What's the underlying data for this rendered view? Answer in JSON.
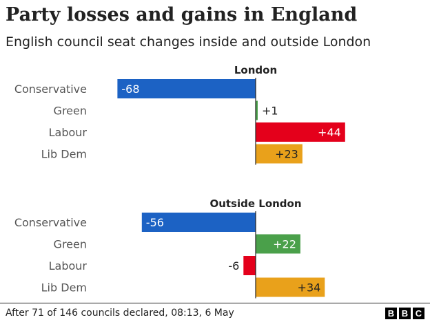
{
  "title": "Party losses and gains in England",
  "subtitle": "English council seat changes inside and outside London",
  "chart_data": [
    {
      "type": "bar",
      "title": "London",
      "categories": [
        "Conservative",
        "Green",
        "Labour",
        "Lib Dem"
      ],
      "values": [
        -68,
        1,
        44,
        23
      ],
      "labels": [
        "-68",
        "+1",
        "+44",
        "+23"
      ],
      "colors": [
        "#1c62c4",
        "#4aa04a",
        "#e4001b",
        "#e9a11b"
      ]
    },
    {
      "type": "bar",
      "title": "Outside London",
      "categories": [
        "Conservative",
        "Green",
        "Labour",
        "Lib Dem"
      ],
      "values": [
        -56,
        22,
        -6,
        34
      ],
      "labels": [
        "-56",
        "+22",
        "-6",
        "+34"
      ],
      "colors": [
        "#1c62c4",
        "#4aa04a",
        "#e4001b",
        "#e9a11b"
      ]
    }
  ],
  "footer": {
    "note": "After 71 of 146 councils declared, 08:13, 6 May",
    "logo": [
      "B",
      "B",
      "C"
    ]
  }
}
